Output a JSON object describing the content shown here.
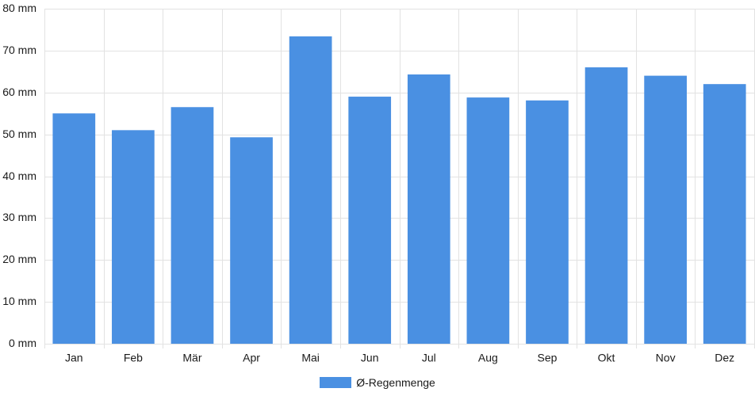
{
  "chart_data": {
    "type": "bar",
    "categories": [
      "Jan",
      "Feb",
      "Mär",
      "Apr",
      "Mai",
      "Jun",
      "Jul",
      "Aug",
      "Sep",
      "Okt",
      "Nov",
      "Dez"
    ],
    "series": [
      {
        "name": "Ø-Regenmenge",
        "values": [
          55,
          51,
          56.5,
          49.3,
          73.4,
          59,
          64.3,
          58.8,
          58.1,
          66,
          64,
          62
        ]
      }
    ],
    "y_tick_labels": [
      "0 mm",
      "10 mm",
      "20 mm",
      "30 mm",
      "40 mm",
      "50 mm",
      "60 mm",
      "70 mm",
      "80 mm"
    ],
    "y_ticks": [
      0,
      10,
      20,
      30,
      40,
      50,
      60,
      70,
      80
    ],
    "ylim": [
      0,
      80
    ],
    "grid": true,
    "legend_position": "bottom-center",
    "colors": {
      "bar": "#4a90e2",
      "grid": "#e2e2e2"
    }
  }
}
